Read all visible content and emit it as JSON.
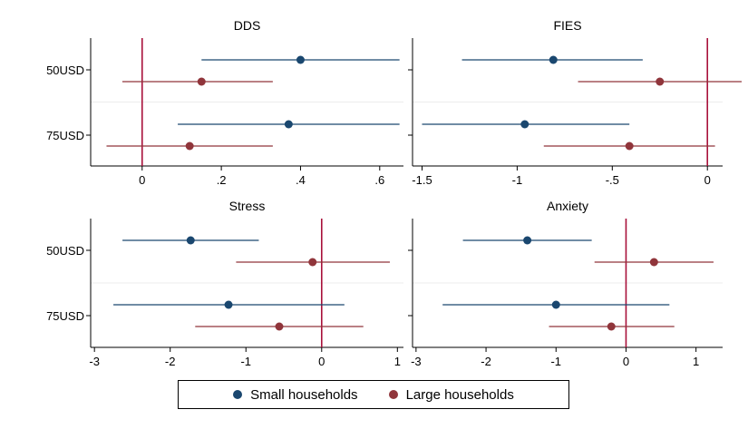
{
  "chart_data": {
    "type": "scatter",
    "subtype": "coefficient-plot",
    "colors": {
      "small": "#1a476f",
      "large": "#90353b",
      "refline": "#a8103a"
    },
    "legend": {
      "position": "bottom",
      "entries": [
        {
          "key": "small",
          "label": "Small households",
          "color": "#1a476f"
        },
        {
          "key": "large",
          "label": "Large households",
          "color": "#90353b"
        }
      ]
    },
    "panels": [
      {
        "title": "DDS",
        "xlim": [
          -0.13,
          0.66
        ],
        "xticks": [
          0,
          0.2,
          0.4,
          0.6
        ],
        "xticklabels": [
          "0",
          ".2",
          ".4",
          ".6"
        ],
        "refline": 0,
        "categories": [
          "50USD",
          "75USD"
        ],
        "series": [
          {
            "name": "Small households",
            "key": "small",
            "estimates": [
              0.4,
              0.37
            ],
            "ci_low": [
              0.15,
              0.09
            ],
            "ci_high": [
              0.65,
              0.65
            ]
          },
          {
            "name": "Large households",
            "key": "large",
            "estimates": [
              0.15,
              0.12
            ],
            "ci_low": [
              -0.05,
              -0.09
            ],
            "ci_high": [
              0.33,
              0.33
            ]
          }
        ]
      },
      {
        "title": "FIES",
        "xlim": [
          -1.55,
          0.08
        ],
        "xticks": [
          -1.5,
          -1,
          -0.5,
          0
        ],
        "xticklabels": [
          "-1.5",
          "-1",
          "-.5",
          "0"
        ],
        "refline": 0,
        "categories": [
          "50USD",
          "75USD"
        ],
        "series": [
          {
            "name": "Small households",
            "key": "small",
            "estimates": [
              -0.81,
              -0.96
            ],
            "ci_low": [
              -1.29,
              -1.5
            ],
            "ci_high": [
              -0.34,
              -0.41
            ]
          },
          {
            "name": "Large households",
            "key": "large",
            "estimates": [
              -0.25,
              -0.41
            ],
            "ci_low": [
              -0.68,
              -0.86
            ],
            "ci_high": [
              0.18,
              0.04
            ]
          }
        ]
      },
      {
        "title": "Stress",
        "xlim": [
          -3.05,
          1.08
        ],
        "xticks": [
          -3,
          -2,
          -1,
          0,
          1
        ],
        "xticklabels": [
          "-3",
          "-2",
          "-1",
          "0",
          "1"
        ],
        "refline": 0,
        "categories": [
          "50USD",
          "75USD"
        ],
        "series": [
          {
            "name": "Small households",
            "key": "small",
            "estimates": [
              -1.73,
              -1.23
            ],
            "ci_low": [
              -2.63,
              -2.75
            ],
            "ci_high": [
              -0.83,
              0.3
            ]
          },
          {
            "name": "Large households",
            "key": "large",
            "estimates": [
              -0.12,
              -0.56
            ],
            "ci_low": [
              -1.13,
              -1.67
            ],
            "ci_high": [
              0.9,
              0.55
            ]
          }
        ]
      },
      {
        "title": "Anxiety",
        "xlim": [
          -3.05,
          1.38
        ],
        "xticks": [
          -3,
          -2,
          -1,
          0,
          1
        ],
        "xticklabels": [
          "-3",
          "-2",
          "-1",
          "0",
          "1"
        ],
        "refline": 0,
        "categories": [
          "50USD",
          "75USD"
        ],
        "series": [
          {
            "name": "Small households",
            "key": "small",
            "estimates": [
              -1.41,
              -1.0
            ],
            "ci_low": [
              -2.33,
              -2.62
            ],
            "ci_high": [
              -0.49,
              0.62
            ]
          },
          {
            "name": "Large households",
            "key": "large",
            "estimates": [
              0.4,
              -0.21
            ],
            "ci_low": [
              -0.45,
              -1.1
            ],
            "ci_high": [
              1.25,
              0.69
            ]
          }
        ]
      }
    ]
  }
}
